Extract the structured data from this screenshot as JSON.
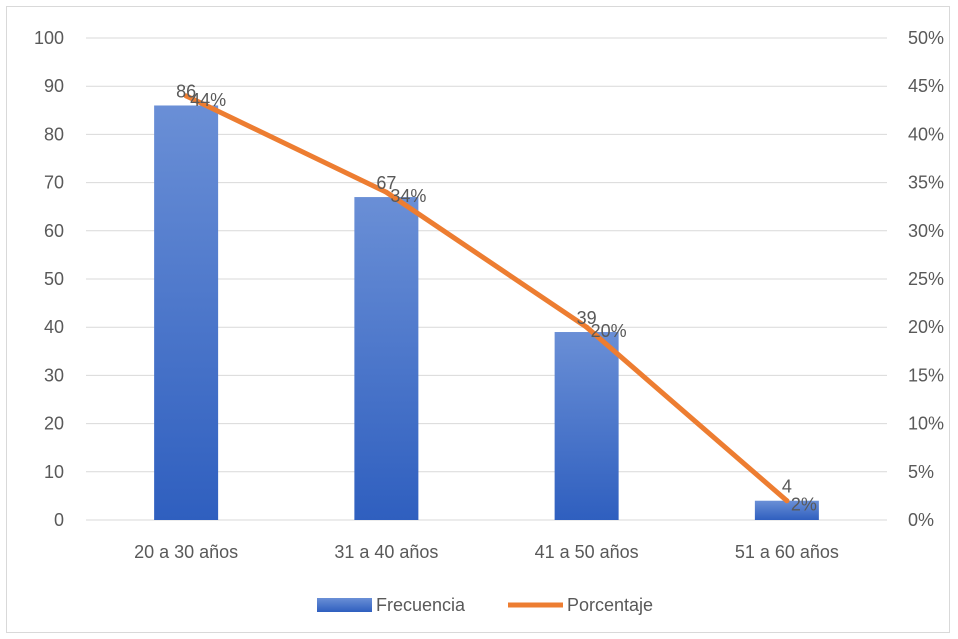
{
  "chart_data": {
    "type": "bar",
    "title": "",
    "xlabel": "",
    "ylabel": "",
    "categories": [
      "20 a 30 años",
      "31 a 40 años",
      "41 a 50 años",
      "51 a 60 años"
    ],
    "series": [
      {
        "name": "Frecuencia",
        "type": "bar",
        "axis": "left",
        "values": [
          86,
          67,
          39,
          4
        ],
        "labels": [
          "86",
          "67",
          "39",
          "4"
        ],
        "color": "#4472c4"
      },
      {
        "name": "Porcentaje",
        "type": "line",
        "axis": "right",
        "values": [
          0.44,
          0.34,
          0.2,
          0.02
        ],
        "labels": [
          "44%",
          "34%",
          "20%",
          "2%"
        ],
        "color": "#ed7d31"
      }
    ],
    "ylim": [
      0,
      100
    ],
    "yticks": [
      "0",
      "10",
      "20",
      "30",
      "40",
      "50",
      "60",
      "70",
      "80",
      "90",
      "100"
    ],
    "y2lim": [
      0,
      0.5
    ],
    "y2ticks": [
      "0%",
      "5%",
      "10%",
      "15%",
      "20%",
      "25%",
      "30%",
      "35%",
      "40%",
      "45%",
      "50%"
    ],
    "grid": true,
    "legend_position": "bottom"
  }
}
